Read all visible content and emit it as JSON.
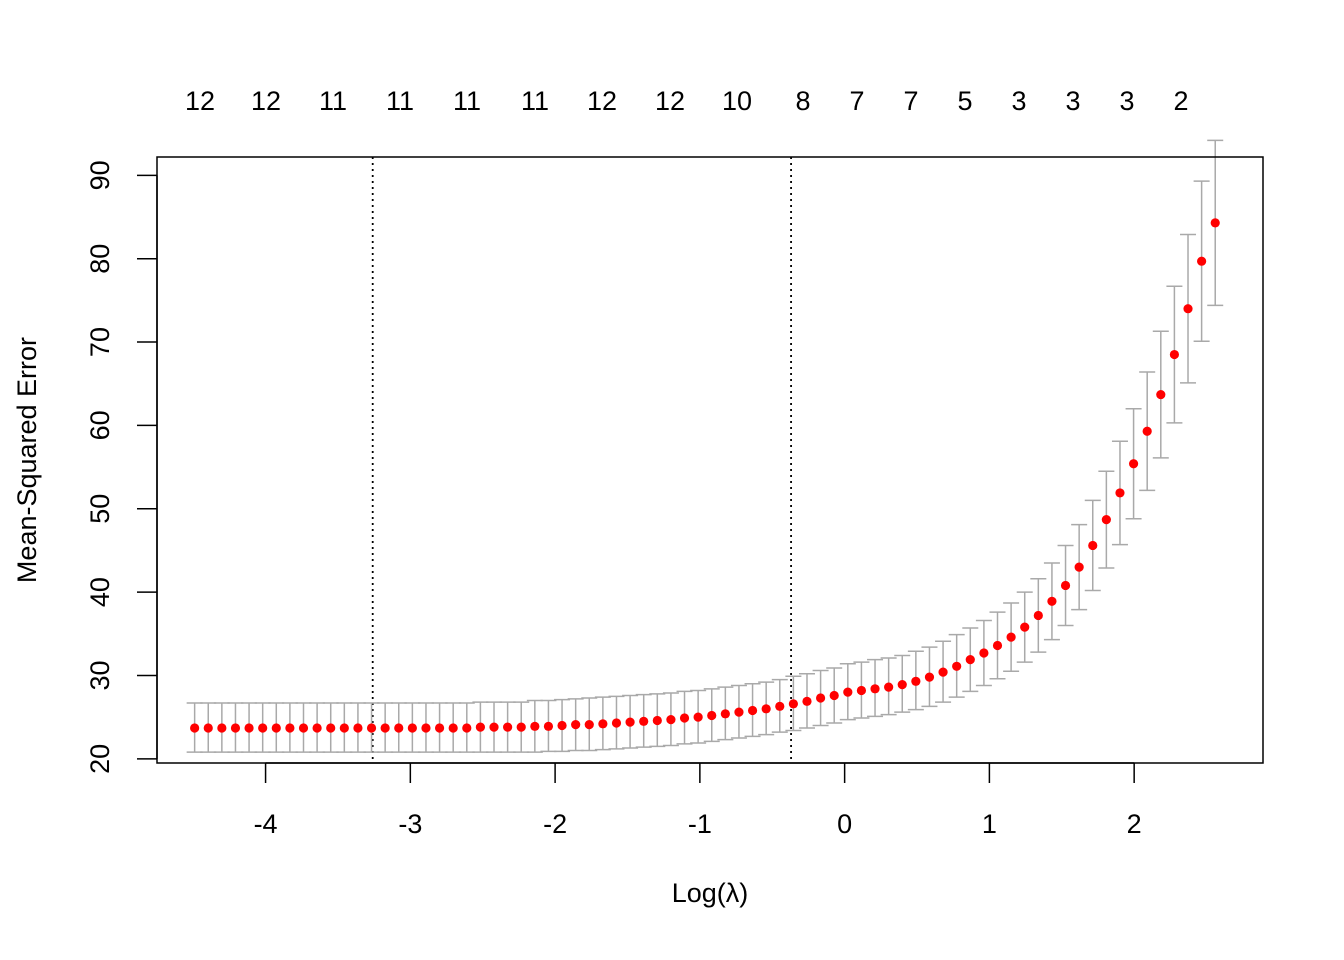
{
  "chart_data": {
    "type": "scatter",
    "xlabel": "Log(λ)",
    "ylabel": "Mean-Squared Error",
    "xlim": [
      -4.75,
      2.89
    ],
    "ylim": [
      19.5,
      92.2
    ],
    "x_ticks": [
      -4,
      -3,
      -2,
      -1,
      0,
      1,
      2
    ],
    "y_ticks": [
      20,
      30,
      40,
      50,
      60,
      70,
      80,
      90
    ],
    "top_axis_labels": [
      "12",
      "12",
      "11",
      "11",
      "11",
      "11",
      "12",
      "12",
      "10",
      "8",
      "7",
      "7",
      "5",
      "3",
      "3",
      "3",
      "2"
    ],
    "vlines": [
      -3.26,
      -0.37
    ],
    "point_color": "#ff0000",
    "errorbar_color": "#a9a9a9",
    "series": [
      {
        "x": [
          -4.49,
          -4.396,
          -4.302,
          -4.208,
          -4.114,
          -4.02,
          -3.926,
          -3.832,
          -3.738,
          -3.644,
          -3.55,
          -3.456,
          -3.362,
          -3.268,
          -3.174,
          -3.08,
          -2.986,
          -2.892,
          -2.798,
          -2.704,
          -2.61,
          -2.516,
          -2.422,
          -2.328,
          -2.234,
          -2.14,
          -2.046,
          -1.952,
          -1.858,
          -1.764,
          -1.67,
          -1.576,
          -1.482,
          -1.388,
          -1.294,
          -1.2,
          -1.106,
          -1.012,
          -0.918,
          -0.824,
          -0.73,
          -0.636,
          -0.542,
          -0.448,
          -0.354,
          -0.26,
          -0.166,
          -0.072,
          0.022,
          0.116,
          0.21,
          0.304,
          0.398,
          0.492,
          0.586,
          0.68,
          0.774,
          0.868,
          0.962,
          1.056,
          1.15,
          1.244,
          1.338,
          1.432,
          1.526,
          1.62,
          1.714,
          1.808,
          1.902,
          1.996,
          2.09,
          2.184,
          2.278,
          2.372,
          2.466,
          2.56
        ],
        "y": [
          23.7,
          23.7,
          23.7,
          23.7,
          23.7,
          23.7,
          23.7,
          23.7,
          23.7,
          23.7,
          23.7,
          23.7,
          23.7,
          23.7,
          23.7,
          23.7,
          23.7,
          23.7,
          23.7,
          23.7,
          23.7,
          23.8,
          23.8,
          23.8,
          23.8,
          23.9,
          23.9,
          24.0,
          24.1,
          24.1,
          24.2,
          24.3,
          24.4,
          24.5,
          24.6,
          24.7,
          24.9,
          25.0,
          25.2,
          25.4,
          25.6,
          25.8,
          26.0,
          26.3,
          26.6,
          26.9,
          27.3,
          27.6,
          28.0,
          28.2,
          28.4,
          28.6,
          28.9,
          29.3,
          29.8,
          30.4,
          31.1,
          31.9,
          32.7,
          33.6,
          34.6,
          35.8,
          37.2,
          38.9,
          40.8,
          43.0,
          45.6,
          48.7,
          51.9,
          55.4,
          59.3,
          63.7,
          68.5,
          74.0,
          79.7,
          84.3
        ],
        "error_lo": [
          20.8,
          20.8,
          20.8,
          20.8,
          20.8,
          20.8,
          20.8,
          20.8,
          20.8,
          20.8,
          20.8,
          20.8,
          20.8,
          20.8,
          20.8,
          20.8,
          20.8,
          20.8,
          20.8,
          20.8,
          20.8,
          20.8,
          20.8,
          20.8,
          20.8,
          20.8,
          20.9,
          20.9,
          21.0,
          21.0,
          21.1,
          21.2,
          21.3,
          21.4,
          21.5,
          21.6,
          21.8,
          21.9,
          22.1,
          22.3,
          22.5,
          22.7,
          22.9,
          23.2,
          23.4,
          23.7,
          24.0,
          24.3,
          24.7,
          24.9,
          25.1,
          25.3,
          25.6,
          25.9,
          26.3,
          26.8,
          27.4,
          28.1,
          28.8,
          29.6,
          30.5,
          31.6,
          32.8,
          34.3,
          36.0,
          37.9,
          40.2,
          42.9,
          45.7,
          48.8,
          52.2,
          56.1,
          60.3,
          65.1,
          70.1,
          74.4
        ],
        "error_hi": [
          26.7,
          26.7,
          26.7,
          26.7,
          26.7,
          26.7,
          26.7,
          26.7,
          26.7,
          26.7,
          26.7,
          26.7,
          26.7,
          26.7,
          26.7,
          26.7,
          26.7,
          26.7,
          26.7,
          26.7,
          26.7,
          26.8,
          26.8,
          26.8,
          26.8,
          27.0,
          27.0,
          27.1,
          27.2,
          27.3,
          27.4,
          27.5,
          27.6,
          27.7,
          27.8,
          27.9,
          28.1,
          28.2,
          28.4,
          28.6,
          28.8,
          29.0,
          29.2,
          29.5,
          29.9,
          30.2,
          30.6,
          30.9,
          31.4,
          31.6,
          31.9,
          32.1,
          32.4,
          32.9,
          33.4,
          34.1,
          34.9,
          35.7,
          36.6,
          37.6,
          38.7,
          40.0,
          41.6,
          43.5,
          45.6,
          48.1,
          51.0,
          54.5,
          58.1,
          62.0,
          66.4,
          71.3,
          76.7,
          82.9,
          89.3,
          94.2
        ]
      }
    ]
  }
}
